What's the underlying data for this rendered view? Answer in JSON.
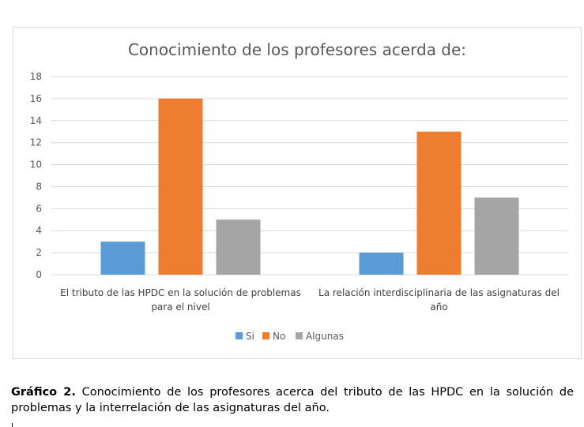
{
  "chart_data": {
    "type": "bar",
    "title": "Conocimiento de los profesores acerda de:",
    "categories": [
      [
        "El tributo de las HPDC en la solución de problemas",
        "para el nivel"
      ],
      [
        "La relación interdisciplinaria de las asignaturas del",
        "año"
      ]
    ],
    "series": [
      {
        "name": "Si",
        "color": "#5b9bd5",
        "values": [
          3,
          2
        ]
      },
      {
        "name": "No",
        "color": "#ed7d31",
        "values": [
          16,
          13
        ]
      },
      {
        "name": "Algunas",
        "color": "#a5a5a5",
        "values": [
          5,
          7
        ]
      }
    ],
    "ylim": [
      0,
      18
    ],
    "yticks": [
      0,
      2,
      4,
      6,
      8,
      10,
      12,
      14,
      16,
      18
    ],
    "xlabel": "",
    "ylabel": "",
    "grid": true,
    "legend_position": "bottom"
  },
  "caption": {
    "label": "Gráfico 2.",
    "text": "Conocimiento de los profesores acerca del tributo de las HPDC en la solución de problemas y la interrelación de las asignaturas del año."
  }
}
